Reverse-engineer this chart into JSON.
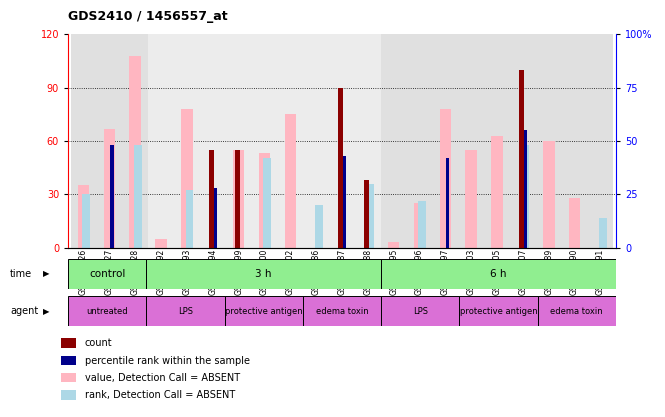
{
  "title": "GDS2410 / 1456557_at",
  "samples": [
    "GSM106426",
    "GSM106427",
    "GSM106428",
    "GSM106392",
    "GSM106393",
    "GSM106394",
    "GSM106399",
    "GSM106400",
    "GSM106402",
    "GSM106386",
    "GSM106387",
    "GSM106388",
    "GSM106395",
    "GSM106396",
    "GSM106397",
    "GSM106403",
    "GSM106405",
    "GSM106407",
    "GSM106389",
    "GSM106390",
    "GSM106391"
  ],
  "count_values": [
    0,
    0,
    0,
    0,
    0,
    55,
    55,
    0,
    0,
    0,
    90,
    38,
    0,
    0,
    0,
    0,
    0,
    100,
    0,
    0,
    0
  ],
  "percentile_values": [
    0,
    48,
    0,
    0,
    0,
    28,
    0,
    0,
    0,
    0,
    43,
    0,
    0,
    0,
    42,
    0,
    0,
    55,
    0,
    0,
    0
  ],
  "absent_value_values": [
    35,
    67,
    108,
    5,
    78,
    0,
    55,
    53,
    75,
    0,
    0,
    0,
    3,
    25,
    78,
    55,
    63,
    0,
    60,
    28,
    0
  ],
  "absent_rank_values": [
    25,
    0,
    48,
    0,
    27,
    0,
    0,
    42,
    0,
    20,
    0,
    30,
    0,
    22,
    0,
    0,
    0,
    48,
    0,
    0,
    14
  ],
  "ylim_left": [
    0,
    120
  ],
  "ylim_right": [
    0,
    100
  ],
  "yticks_left": [
    0,
    30,
    60,
    90,
    120
  ],
  "yticks_right": [
    0,
    25,
    50,
    75,
    100
  ],
  "color_count": "#8b0000",
  "color_percentile": "#00008b",
  "color_absent_value": "#ffb6c1",
  "color_absent_rank": "#add8e6",
  "group_bg_colors": [
    "#cccccc",
    "#e0e0e0"
  ],
  "group_boundaries": [
    0,
    3,
    12,
    21
  ],
  "time_groups": [
    {
      "label": "control",
      "start": 0,
      "end": 3
    },
    {
      "label": "3 h",
      "start": 3,
      "end": 12
    },
    {
      "label": "6 h",
      "start": 12,
      "end": 21
    }
  ],
  "time_color": "#90ee90",
  "agent_groups": [
    {
      "label": "untreated",
      "start": 0,
      "end": 3
    },
    {
      "label": "LPS",
      "start": 3,
      "end": 6
    },
    {
      "label": "protective antigen",
      "start": 6,
      "end": 9
    },
    {
      "label": "edema toxin",
      "start": 9,
      "end": 12
    },
    {
      "label": "LPS",
      "start": 12,
      "end": 15
    },
    {
      "label": "protective antigen",
      "start": 15,
      "end": 18
    },
    {
      "label": "edema toxin",
      "start": 18,
      "end": 21
    }
  ],
  "agent_color": "#da70d6",
  "legend_items": [
    {
      "label": "count",
      "color": "#8b0000"
    },
    {
      "label": "percentile rank within the sample",
      "color": "#00008b"
    },
    {
      "label": "value, Detection Call = ABSENT",
      "color": "#ffb6c1"
    },
    {
      "label": "rank, Detection Call = ABSENT",
      "color": "#add8e6"
    }
  ]
}
